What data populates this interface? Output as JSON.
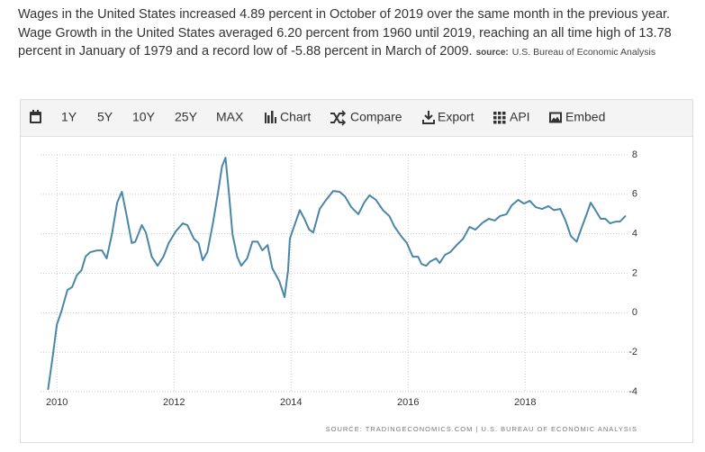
{
  "description": {
    "text": "Wages in the United States increased 4.89 percent in October of 2019 over the same month in the previous year. Wage Growth in the United States averaged 6.20 percent from 1960 until 2019, reaching an all time high of 13.78 percent in January of 1979 and a record low of -5.88 percent in March of 2009.",
    "source_label": "source:",
    "source_text": "U.S. Bureau of Economic Analysis"
  },
  "toolbar": [
    "1Y",
    "5Y",
    "10Y",
    "25Y",
    "MAX",
    "Chart",
    "Compare",
    "Export",
    "API",
    "Embed"
  ],
  "chart_data": {
    "type": "line",
    "color": "#4a86a8",
    "grid": true,
    "source": "SOURCE: TRADINGECONOMICS.COM | U.S. BUREAU OF ECONOMIC ANALYSIS",
    "xlim": [
      2009.72,
      2019.75
    ],
    "xticks": [
      2010,
      2012,
      2014,
      2016,
      2018
    ],
    "ylim": [
      -4,
      8
    ],
    "yticks": [
      -4,
      -2,
      0,
      2,
      4,
      6,
      8
    ],
    "x": [
      2009.85,
      2009.92,
      2010.0,
      2010.08,
      2010.18,
      2010.26,
      2010.34,
      2010.42,
      2010.49,
      2010.57,
      2010.69,
      2010.77,
      2010.85,
      2010.94,
      2011.03,
      2011.11,
      2011.18,
      2011.28,
      2011.34,
      2011.45,
      2011.52,
      2011.62,
      2011.72,
      2011.82,
      2011.91,
      2012.03,
      2012.15,
      2012.23,
      2012.34,
      2012.42,
      2012.49,
      2012.57,
      2012.66,
      2012.75,
      2012.82,
      2012.88,
      2012.94,
      2013.0,
      2013.08,
      2013.15,
      2013.25,
      2013.34,
      2013.43,
      2013.51,
      2013.6,
      2013.68,
      2013.8,
      2013.89,
      2013.95,
      2013.98,
      2014.06,
      2014.15,
      2014.23,
      2014.31,
      2014.38,
      2014.49,
      2014.6,
      2014.72,
      2014.83,
      2014.92,
      2015.03,
      2015.15,
      2015.25,
      2015.34,
      2015.45,
      2015.57,
      2015.68,
      2015.77,
      2015.88,
      2015.98,
      2016.08,
      2016.17,
      2016.23,
      2016.31,
      2016.38,
      2016.48,
      2016.54,
      2016.63,
      2016.72,
      2016.83,
      2016.94,
      2017.05,
      2017.15,
      2017.28,
      2017.38,
      2017.48,
      2017.57,
      2017.68,
      2017.77,
      2017.88,
      2017.98,
      2018.08,
      2018.18,
      2018.29,
      2018.4,
      2018.49,
      2018.6,
      2018.69,
      2018.78,
      2018.88,
      2018.97,
      2019.05,
      2019.12,
      2019.2,
      2019.29,
      2019.37,
      2019.45,
      2019.55,
      2019.62,
      2019.71
    ],
    "values": [
      -3.87,
      -2.4,
      -0.6,
      0.1,
      1.15,
      1.3,
      1.9,
      2.15,
      2.85,
      3.07,
      3.16,
      3.16,
      2.75,
      3.98,
      5.58,
      6.13,
      5.1,
      3.53,
      3.6,
      4.44,
      4.07,
      2.84,
      2.38,
      2.84,
      3.53,
      4.12,
      4.53,
      4.44,
      3.75,
      3.53,
      2.66,
      3.07,
      4.44,
      6.04,
      7.4,
      7.86,
      6.04,
      3.98,
      2.84,
      2.38,
      2.75,
      3.6,
      3.6,
      3.16,
      3.43,
      2.25,
      1.6,
      0.79,
      2.16,
      3.75,
      4.44,
      5.2,
      4.75,
      4.21,
      4.07,
      5.26,
      5.72,
      6.17,
      6.13,
      5.9,
      5.35,
      4.99,
      5.58,
      5.95,
      5.72,
      5.2,
      4.9,
      4.35,
      3.89,
      3.53,
      2.84,
      2.84,
      2.47,
      2.38,
      2.6,
      2.75,
      2.52,
      2.93,
      3.07,
      3.43,
      3.75,
      4.35,
      4.21,
      4.58,
      4.76,
      4.67,
      4.9,
      4.99,
      5.44,
      5.72,
      5.53,
      5.67,
      5.35,
      5.26,
      5.4,
      5.2,
      5.26,
      4.67,
      3.89,
      3.6,
      4.35,
      4.99,
      5.58,
      5.2,
      4.76,
      4.76,
      4.53,
      4.62,
      4.62,
      4.89
    ]
  }
}
